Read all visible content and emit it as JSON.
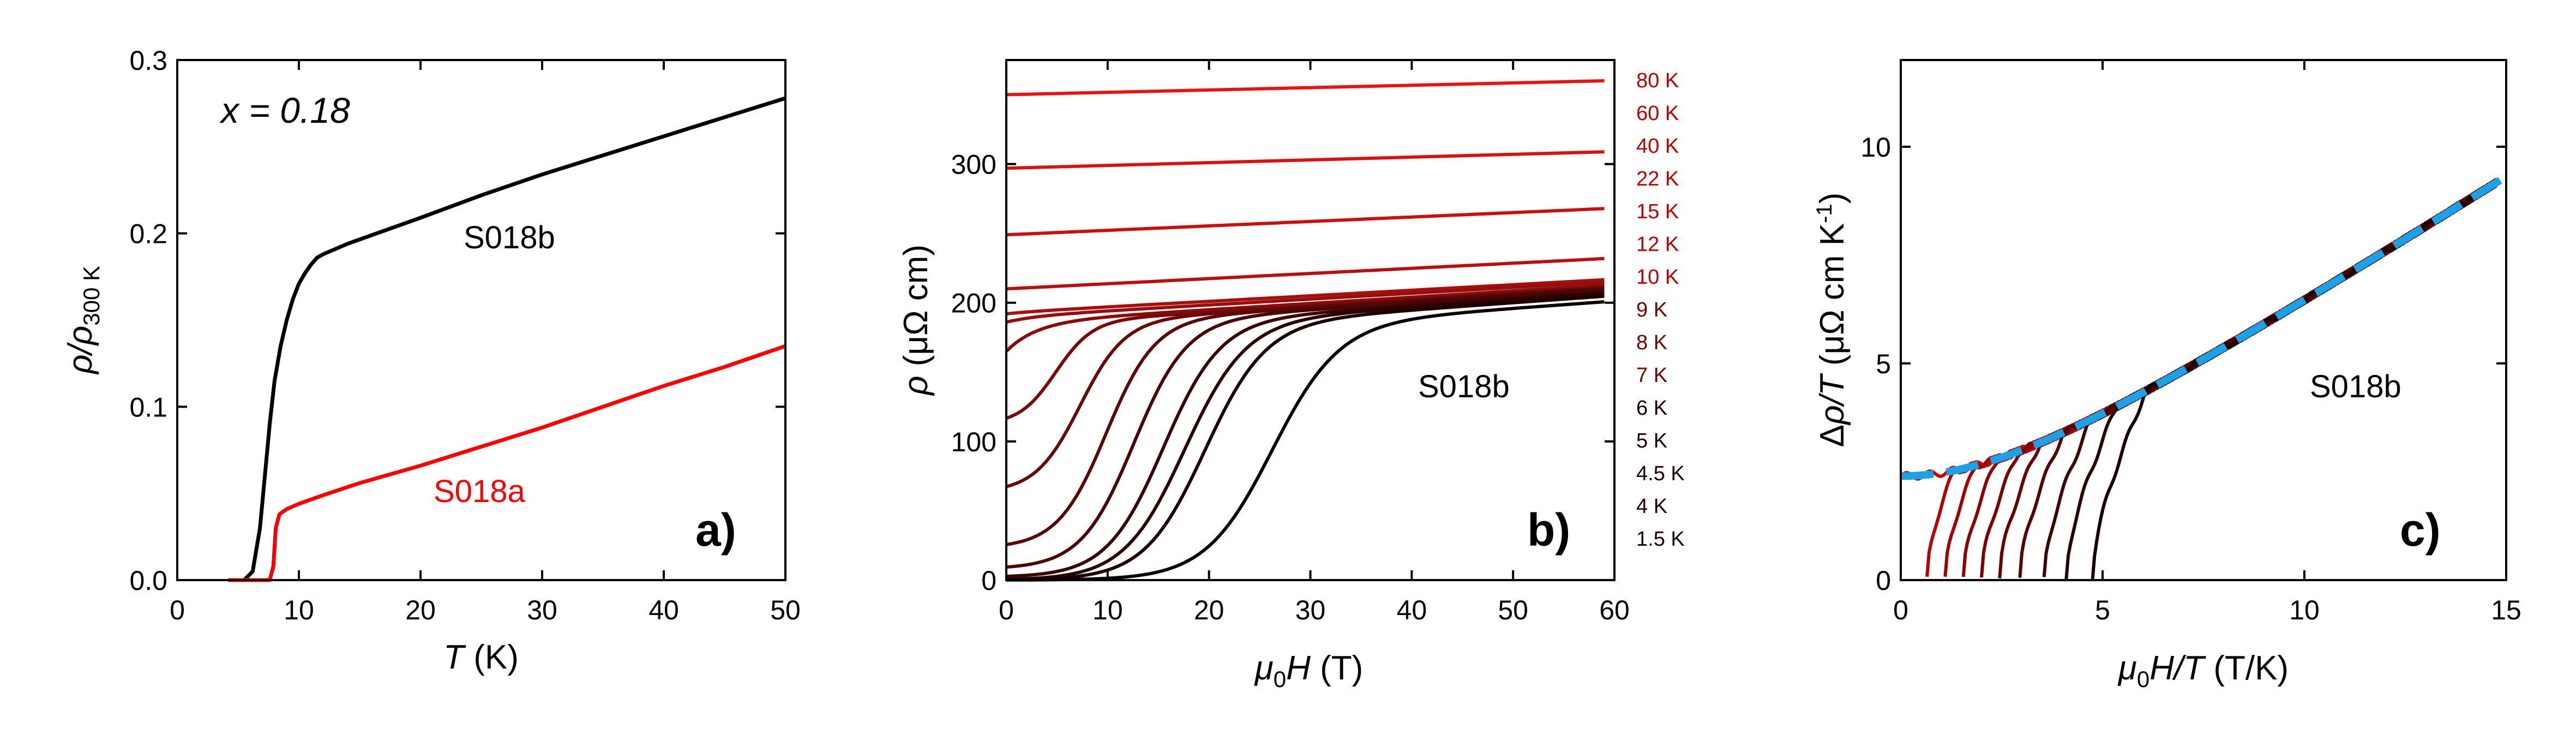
{
  "chart_data": [
    {
      "type": "line",
      "panel_label": "a)",
      "annotation": "x = 0.18",
      "xlabel": {
        "var": "T",
        "unit": " (K)"
      },
      "ylabel": "ρ/ρ",
      "ylabel_sub": "300 K",
      "xlim": [
        0,
        50
      ],
      "ylim": [
        0,
        0.3
      ],
      "xticks": [
        "0",
        "10",
        "20",
        "30",
        "40",
        "50"
      ],
      "yticks": [
        "0.0",
        "0.1",
        "0.2",
        "0.3"
      ],
      "series": [
        {
          "name": "S018b",
          "color": "#000000",
          "x": [
            4.2,
            5.5,
            6.2,
            6.8,
            7.2,
            7.6,
            8.0,
            8.5,
            9.0,
            9.5,
            10.0,
            10.5,
            11.0,
            11.5,
            12.0,
            13.0,
            14.0,
            16.0,
            20.0,
            25.0,
            30.0,
            35.0,
            40.0,
            45.0,
            50.0
          ],
          "y": [
            0.0,
            0.0,
            0.005,
            0.03,
            0.06,
            0.09,
            0.115,
            0.135,
            0.15,
            0.162,
            0.171,
            0.177,
            0.182,
            0.186,
            0.188,
            0.191,
            0.194,
            0.199,
            0.209,
            0.222,
            0.234,
            0.245,
            0.256,
            0.267,
            0.278
          ]
        },
        {
          "name": "S018a",
          "color": "#ff0000",
          "x": [
            4.2,
            7.6,
            7.9,
            8.1,
            8.4,
            9.0,
            10.0,
            12.0,
            15.0,
            20.0,
            25.0,
            30.0,
            35.0,
            40.0,
            45.0,
            50.0
          ],
          "y": [
            0.0,
            0.0,
            0.008,
            0.03,
            0.038,
            0.041,
            0.044,
            0.049,
            0.056,
            0.066,
            0.077,
            0.088,
            0.1,
            0.112,
            0.123,
            0.135
          ]
        }
      ]
    },
    {
      "type": "line",
      "panel_label": "b)",
      "annotation": "S018b",
      "xlabel": {
        "var": "μ",
        "sub": "0",
        "var2": "H",
        "unit": " (T)"
      },
      "ylabel": {
        "var": "ρ",
        "unit": " (μΩ cm)"
      },
      "xlim": [
        0,
        60
      ],
      "ylim": [
        0,
        375
      ],
      "xticks": [
        "0",
        "10",
        "20",
        "30",
        "40",
        "50",
        "60"
      ],
      "yticks": [
        "0",
        "100",
        "200",
        "300"
      ],
      "temperature_labels": [
        "80 K",
        "60 K",
        "40 K",
        "22 K",
        "15 K",
        "12 K",
        "10 K",
        "9 K",
        "8 K",
        "7 K",
        "6 K",
        "5 K",
        "4.5 K",
        "4 K",
        "1.5 K"
      ],
      "series": [
        {
          "name": "80 K",
          "rho0": 350,
          "rhoN": 350,
          "slope": 0.17,
          "hc": 0,
          "w": 1
        },
        {
          "name": "60 K",
          "rho0": 297,
          "rhoN": 297,
          "slope": 0.2,
          "hc": 0,
          "w": 1
        },
        {
          "name": "40 K",
          "rho0": 249,
          "rhoN": 249,
          "slope": 0.32,
          "hc": 0,
          "w": 1
        },
        {
          "name": "22 K",
          "rho0": 210,
          "rhoN": 210,
          "slope": 0.37,
          "hc": 0,
          "w": 1
        },
        {
          "name": "15 K",
          "rho0": 192,
          "rhoN": 193,
          "slope": 0.4,
          "hc": 0,
          "w": 1
        },
        {
          "name": "12 K",
          "rho0": 186,
          "rhoN": 190,
          "slope": 0.42,
          "hc": 0,
          "w": 1
        },
        {
          "name": "10 K",
          "rho0": 165,
          "rhoN": 186,
          "slope": 0.45,
          "hc": 0,
          "w": 1.5
        },
        {
          "name": "9 K",
          "rho0": 112,
          "rhoN": 184,
          "slope": 0.46,
          "hc": 1.2,
          "w": 1.8
        },
        {
          "name": "8 K",
          "rho0": 63,
          "rhoN": 183,
          "slope": 0.47,
          "hc": 2.8,
          "w": 2.2
        },
        {
          "name": "7 K",
          "rho0": 23,
          "rhoN": 182,
          "slope": 0.48,
          "hc": 5.0,
          "w": 2.4
        },
        {
          "name": "6 K",
          "rho0": 8,
          "rhoN": 180,
          "slope": 0.5,
          "hc": 7.3,
          "w": 2.6
        },
        {
          "name": "5 K",
          "rho0": 2,
          "rhoN": 178,
          "slope": 0.5,
          "hc": 9.8,
          "w": 2.8
        },
        {
          "name": "4.5 K",
          "rho0": 0,
          "rhoN": 176,
          "slope": 0.52,
          "hc": 11.5,
          "w": 3.0
        },
        {
          "name": "4 K",
          "rho0": 0,
          "rhoN": 174,
          "slope": 0.52,
          "hc": 13.5,
          "w": 3.0
        },
        {
          "name": "1.5 K",
          "rho0": 0,
          "rhoN": 170,
          "slope": 0.52,
          "hc": 19.5,
          "w": 3.3
        }
      ]
    },
    {
      "type": "line",
      "panel_label": "c)",
      "annotation": "S018b",
      "xlabel": {
        "var": "μ",
        "sub": "0",
        "var2": "H/T",
        "unit": " (T/K)"
      },
      "ylabel": {
        "pre": "Δ",
        "var": "ρ/T",
        "unit": " (μΩ cm K",
        "sup": "-1",
        "close": ")"
      },
      "xlim": [
        0,
        15
      ],
      "ylim": [
        0,
        12
      ],
      "xticks": [
        "0",
        "5",
        "10",
        "15"
      ],
      "yticks": [
        "0",
        "5",
        "10"
      ],
      "fit": {
        "name": "fit",
        "color": "#1aa1e6",
        "a": 2.4,
        "b": 0.6
      },
      "onset_x": [
        0.0,
        0.65,
        1.1,
        1.55,
        2.0,
        2.45,
        2.95,
        3.55,
        4.1,
        4.75
      ],
      "series_colors": [
        "#cc0000",
        "#b80000",
        "#a40000",
        "#900000",
        "#7d0000",
        "#6a0000",
        "#560000",
        "#420000",
        "#2d0000",
        "#180000"
      ]
    }
  ]
}
